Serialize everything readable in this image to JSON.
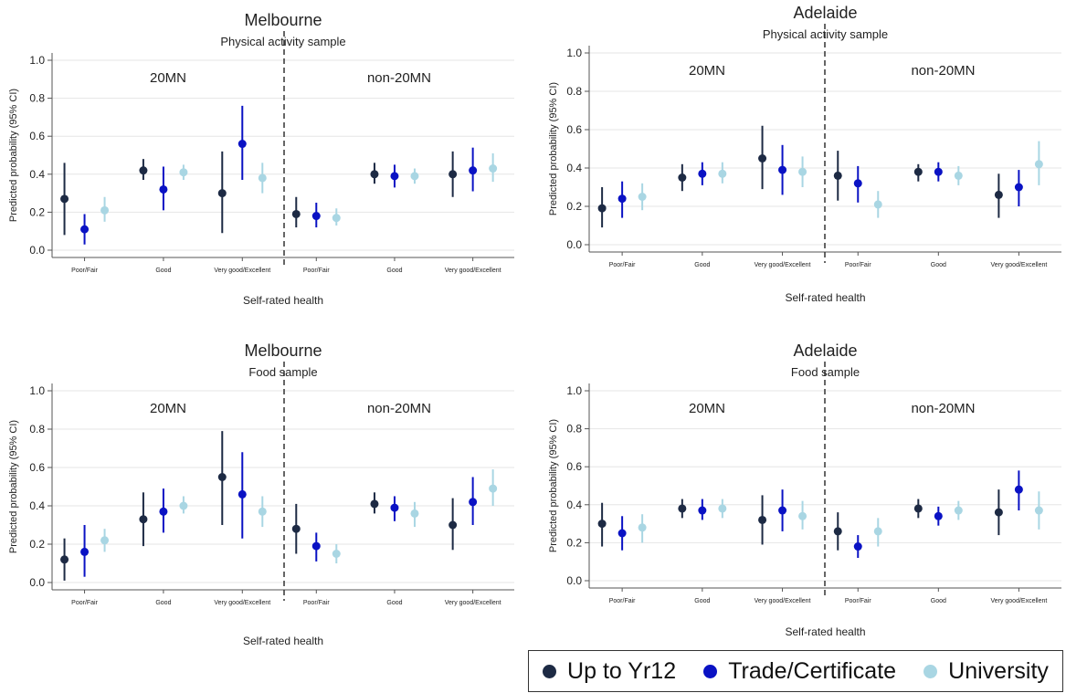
{
  "colors": {
    "up_to_yr12": "#1d2a44",
    "trade": "#0a12c4",
    "university": "#a9d6e3",
    "gridline": "#e6e6e6",
    "axis": "#555555"
  },
  "legend": {
    "labels": [
      "Up to Yr12",
      "Trade/Certificate",
      "University"
    ]
  },
  "chart_data": [
    {
      "type": "scatter",
      "title": "Melbourne",
      "subtitle": "Physical activity sample",
      "xlabel": "Self-rated health",
      "ylabel": "Predicted probability (95% CI)",
      "ylim": [
        0,
        1.0
      ],
      "yticks": [
        "0.0",
        "0.2",
        "0.4",
        "0.6",
        "0.8",
        "1.0"
      ],
      "grid": true,
      "panels": [
        "20MN",
        "non-20MN"
      ],
      "categories": [
        "Poor/Fair",
        "Good",
        "Very good/Excellent"
      ],
      "series": [
        {
          "name": "Up to Yr12",
          "values": [
            [
              0.27,
              0.08,
              0.46
            ],
            [
              0.42,
              0.37,
              0.48
            ],
            [
              0.3,
              0.09,
              0.52
            ],
            [
              0.19,
              0.12,
              0.28
            ],
            [
              0.4,
              0.35,
              0.46
            ],
            [
              0.4,
              0.28,
              0.52
            ]
          ]
        },
        {
          "name": "Trade/Certificate",
          "values": [
            [
              0.11,
              0.03,
              0.19
            ],
            [
              0.32,
              0.21,
              0.44
            ],
            [
              0.56,
              0.37,
              0.76
            ],
            [
              0.18,
              0.12,
              0.25
            ],
            [
              0.39,
              0.33,
              0.45
            ],
            [
              0.42,
              0.31,
              0.54
            ]
          ]
        },
        {
          "name": "University",
          "values": [
            [
              0.21,
              0.15,
              0.28
            ],
            [
              0.41,
              0.37,
              0.45
            ],
            [
              0.38,
              0.3,
              0.46
            ],
            [
              0.17,
              0.13,
              0.22
            ],
            [
              0.39,
              0.35,
              0.43
            ],
            [
              0.43,
              0.36,
              0.51
            ]
          ]
        }
      ]
    },
    {
      "type": "scatter",
      "title": "Adelaide",
      "subtitle": "Physical activity sample",
      "xlabel": "Self-rated health",
      "ylabel": "Predicted probability (95% CI)",
      "ylim": [
        0,
        1.0
      ],
      "yticks": [
        "0.0",
        "0.2",
        "0.4",
        "0.6",
        "0.8",
        "1.0"
      ],
      "grid": true,
      "panels": [
        "20MN",
        "non-20MN"
      ],
      "categories": [
        "Poor/Fair",
        "Good",
        "Very good/Excellent"
      ],
      "series": [
        {
          "name": "Up to Yr12",
          "values": [
            [
              0.19,
              0.09,
              0.3
            ],
            [
              0.35,
              0.28,
              0.42
            ],
            [
              0.45,
              0.29,
              0.62
            ],
            [
              0.36,
              0.23,
              0.49
            ],
            [
              0.38,
              0.33,
              0.42
            ],
            [
              0.26,
              0.14,
              0.37
            ]
          ]
        },
        {
          "name": "Trade/Certificate",
          "values": [
            [
              0.24,
              0.14,
              0.33
            ],
            [
              0.37,
              0.31,
              0.43
            ],
            [
              0.39,
              0.26,
              0.52
            ],
            [
              0.32,
              0.22,
              0.41
            ],
            [
              0.38,
              0.33,
              0.43
            ],
            [
              0.3,
              0.2,
              0.39
            ]
          ]
        },
        {
          "name": "University",
          "values": [
            [
              0.25,
              0.18,
              0.32
            ],
            [
              0.37,
              0.32,
              0.43
            ],
            [
              0.38,
              0.3,
              0.46
            ],
            [
              0.21,
              0.14,
              0.28
            ],
            [
              0.36,
              0.31,
              0.41
            ],
            [
              0.42,
              0.31,
              0.54
            ]
          ]
        }
      ]
    },
    {
      "type": "scatter",
      "title": "Melbourne",
      "subtitle": "Food sample",
      "xlabel": "Self-rated health",
      "ylabel": "Predicted probability (95% CI)",
      "ylim": [
        0,
        1.0
      ],
      "yticks": [
        "0.0",
        "0.2",
        "0.4",
        "0.6",
        "0.8",
        "1.0"
      ],
      "grid": true,
      "panels": [
        "20MN",
        "non-20MN"
      ],
      "categories": [
        "Poor/Fair",
        "Good",
        "Very good/Excellent"
      ],
      "series": [
        {
          "name": "Up to Yr12",
          "values": [
            [
              0.12,
              0.01,
              0.23
            ],
            [
              0.33,
              0.19,
              0.47
            ],
            [
              0.55,
              0.3,
              0.79
            ],
            [
              0.28,
              0.15,
              0.41
            ],
            [
              0.41,
              0.36,
              0.47
            ],
            [
              0.3,
              0.17,
              0.44
            ]
          ]
        },
        {
          "name": "Trade/Certificate",
          "values": [
            [
              0.16,
              0.03,
              0.3
            ],
            [
              0.37,
              0.26,
              0.49
            ],
            [
              0.46,
              0.23,
              0.68
            ],
            [
              0.19,
              0.11,
              0.26
            ],
            [
              0.39,
              0.32,
              0.45
            ],
            [
              0.42,
              0.3,
              0.55
            ]
          ]
        },
        {
          "name": "University",
          "values": [
            [
              0.22,
              0.16,
              0.28
            ],
            [
              0.4,
              0.36,
              0.45
            ],
            [
              0.37,
              0.29,
              0.45
            ],
            [
              0.15,
              0.1,
              0.2
            ],
            [
              0.36,
              0.29,
              0.42
            ],
            [
              0.49,
              0.4,
              0.59
            ]
          ]
        }
      ]
    },
    {
      "type": "scatter",
      "title": "Adelaide",
      "subtitle": "Food sample",
      "xlabel": "Self-rated health",
      "ylabel": "Predicted probability (95% CI)",
      "ylim": [
        0,
        1.0
      ],
      "yticks": [
        "0.0",
        "0.2",
        "0.4",
        "0.6",
        "0.8",
        "1.0"
      ],
      "grid": true,
      "panels": [
        "20MN",
        "non-20MN"
      ],
      "categories": [
        "Poor/Fair",
        "Good",
        "Very good/Excellent"
      ],
      "series": [
        {
          "name": "Up to Yr12",
          "values": [
            [
              0.3,
              0.18,
              0.41
            ],
            [
              0.38,
              0.33,
              0.43
            ],
            [
              0.32,
              0.19,
              0.45
            ],
            [
              0.26,
              0.16,
              0.36
            ],
            [
              0.38,
              0.33,
              0.43
            ],
            [
              0.36,
              0.24,
              0.48
            ]
          ]
        },
        {
          "name": "Trade/Certificate",
          "values": [
            [
              0.25,
              0.16,
              0.34
            ],
            [
              0.37,
              0.32,
              0.43
            ],
            [
              0.37,
              0.26,
              0.48
            ],
            [
              0.18,
              0.12,
              0.24
            ],
            [
              0.34,
              0.29,
              0.39
            ],
            [
              0.48,
              0.37,
              0.58
            ]
          ]
        },
        {
          "name": "University",
          "values": [
            [
              0.28,
              0.2,
              0.35
            ],
            [
              0.38,
              0.33,
              0.43
            ],
            [
              0.34,
              0.27,
              0.42
            ],
            [
              0.26,
              0.18,
              0.33
            ],
            [
              0.37,
              0.32,
              0.42
            ],
            [
              0.37,
              0.27,
              0.47
            ]
          ]
        }
      ]
    }
  ]
}
